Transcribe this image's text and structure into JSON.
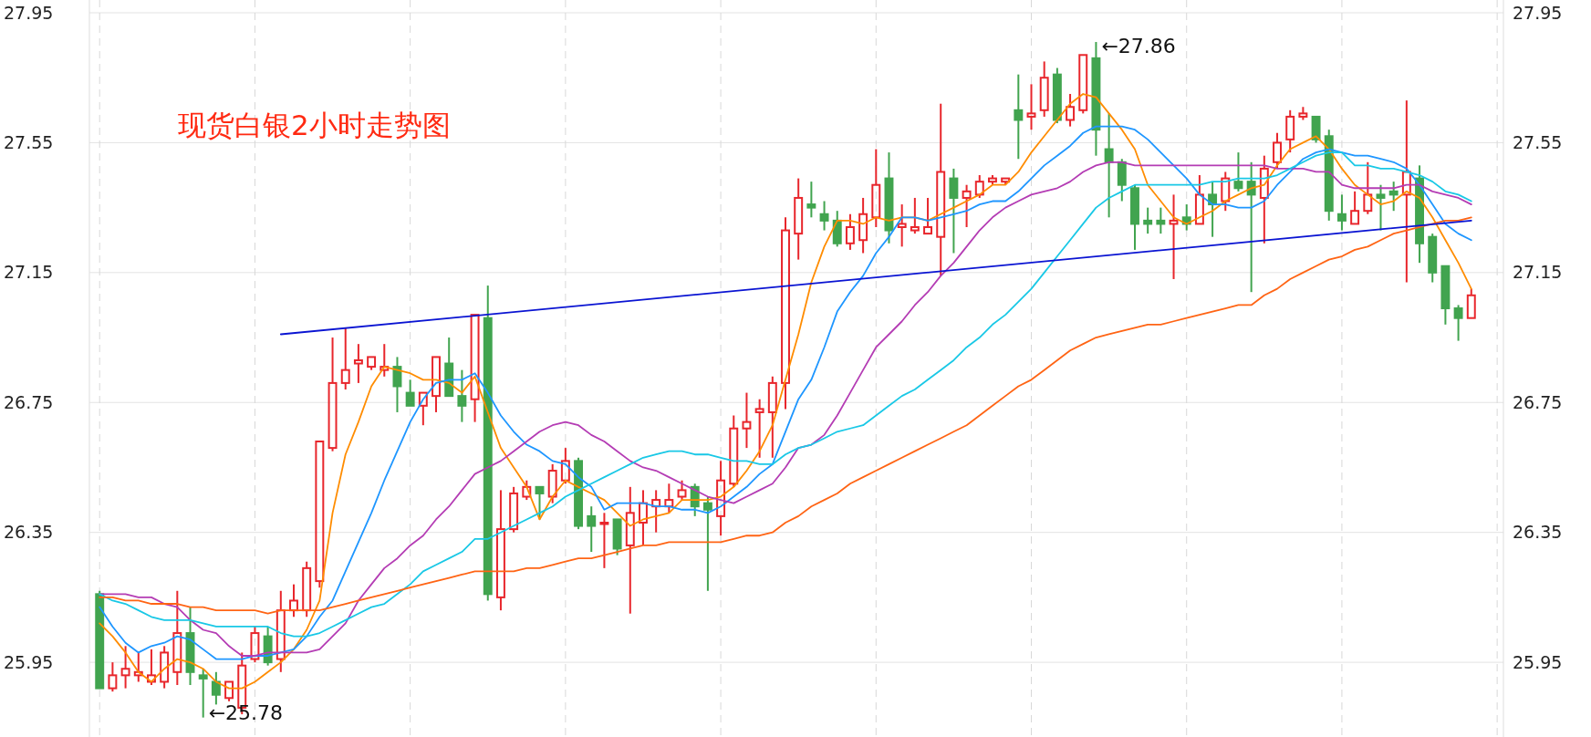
{
  "chart_data": {
    "type": "candlestick",
    "title": "现货白银2小时走势图",
    "categories": [
      null,
      null,
      null,
      null,
      null,
      null,
      null,
      null,
      null,
      null,
      null,
      null,
      null,
      null,
      null,
      null,
      null,
      null,
      null,
      null,
      null,
      null,
      null,
      null,
      null,
      null,
      null,
      null,
      null,
      null,
      null,
      null,
      null,
      null,
      null,
      null,
      null,
      null,
      null,
      null,
      null,
      null,
      null,
      null,
      null,
      null,
      null,
      null,
      null,
      null,
      null,
      null,
      null,
      null,
      null,
      null,
      null,
      null,
      null,
      null,
      null,
      null,
      null,
      null,
      null,
      null,
      null,
      null,
      null,
      null,
      null,
      null,
      null,
      null,
      null,
      null,
      null,
      null,
      null,
      null,
      null,
      null,
      null,
      null,
      null,
      null,
      null,
      null,
      null,
      null,
      null,
      null,
      null,
      null,
      null,
      null,
      null,
      null,
      null,
      null,
      null,
      null,
      null,
      null,
      null,
      null,
      null
    ],
    "ohlc": [
      [
        26.16,
        26.17,
        25.87,
        25.87
      ],
      [
        25.87,
        25.95,
        25.86,
        25.91
      ],
      [
        25.91,
        26.0,
        25.87,
        25.93
      ],
      [
        25.91,
        25.98,
        25.89,
        25.92
      ],
      [
        25.89,
        25.99,
        25.88,
        25.91
      ],
      [
        25.89,
        26.0,
        25.87,
        25.98
      ],
      [
        25.92,
        26.17,
        25.88,
        26.04
      ],
      [
        26.04,
        26.12,
        25.88,
        25.92
      ],
      [
        25.91,
        25.93,
        25.78,
        25.9
      ],
      [
        25.89,
        25.92,
        25.82,
        25.85
      ],
      [
        25.84,
        25.89,
        25.83,
        25.89
      ],
      [
        25.81,
        25.98,
        25.79,
        25.94
      ],
      [
        25.96,
        26.06,
        25.95,
        26.04
      ],
      [
        26.03,
        26.06,
        25.94,
        25.95
      ],
      [
        25.96,
        26.17,
        25.92,
        26.11
      ],
      [
        26.11,
        26.19,
        26.09,
        26.14
      ],
      [
        26.11,
        26.26,
        26.09,
        26.24
      ],
      [
        26.2,
        26.63,
        26.18,
        26.63
      ],
      [
        26.61,
        26.95,
        26.6,
        26.81
      ],
      [
        26.81,
        26.98,
        26.79,
        26.85
      ],
      [
        26.87,
        26.93,
        26.81,
        26.88
      ],
      [
        26.86,
        26.89,
        26.85,
        26.89
      ],
      [
        26.85,
        26.93,
        26.83,
        26.86
      ],
      [
        26.86,
        26.89,
        26.72,
        26.8
      ],
      [
        26.78,
        26.82,
        26.74,
        26.74
      ],
      [
        26.74,
        26.78,
        26.68,
        26.78
      ],
      [
        26.77,
        26.89,
        26.72,
        26.89
      ],
      [
        26.87,
        26.95,
        26.77,
        26.77
      ],
      [
        26.77,
        26.85,
        26.69,
        26.74
      ],
      [
        26.76,
        27.02,
        26.69,
        27.02
      ],
      [
        27.01,
        27.11,
        26.14,
        26.16
      ],
      [
        26.15,
        26.48,
        26.11,
        26.36
      ],
      [
        26.36,
        26.49,
        26.35,
        26.47
      ],
      [
        26.46,
        26.51,
        26.45,
        26.49
      ],
      [
        26.49,
        26.49,
        26.39,
        26.47
      ],
      [
        26.46,
        26.56,
        26.44,
        26.54
      ],
      [
        26.51,
        26.61,
        26.5,
        26.57
      ],
      [
        26.57,
        26.58,
        26.36,
        26.37
      ],
      [
        26.4,
        26.43,
        26.29,
        26.37
      ],
      [
        26.38,
        26.41,
        26.24,
        26.38
      ],
      [
        26.39,
        26.39,
        26.28,
        26.3
      ],
      [
        26.31,
        26.49,
        26.1,
        26.41
      ],
      [
        26.38,
        26.48,
        26.31,
        26.44
      ],
      [
        26.43,
        26.48,
        26.35,
        26.45
      ],
      [
        26.43,
        26.5,
        26.41,
        26.45
      ],
      [
        26.46,
        26.51,
        26.45,
        26.48
      ],
      [
        26.49,
        26.5,
        26.4,
        26.43
      ],
      [
        26.44,
        26.46,
        26.17,
        26.42
      ],
      [
        26.4,
        26.57,
        26.34,
        26.51
      ],
      [
        26.5,
        26.71,
        26.49,
        26.67
      ],
      [
        26.67,
        26.78,
        26.61,
        26.69
      ],
      [
        26.72,
        26.76,
        26.58,
        26.73
      ],
      [
        26.72,
        26.83,
        26.58,
        26.81
      ],
      [
        26.81,
        27.32,
        26.73,
        27.28
      ],
      [
        27.27,
        27.44,
        27.19,
        27.38
      ],
      [
        27.36,
        27.43,
        27.32,
        27.35
      ],
      [
        27.33,
        27.37,
        27.28,
        27.31
      ],
      [
        27.31,
        27.34,
        27.23,
        27.24
      ],
      [
        27.24,
        27.33,
        27.22,
        27.29
      ],
      [
        27.25,
        27.38,
        27.21,
        27.33
      ],
      [
        27.32,
        27.53,
        27.29,
        27.42
      ],
      [
        27.44,
        27.52,
        27.24,
        27.28
      ],
      [
        27.29,
        27.36,
        27.23,
        27.3
      ],
      [
        27.28,
        27.38,
        27.27,
        27.29
      ],
      [
        27.27,
        27.38,
        27.27,
        27.29
      ],
      [
        27.26,
        27.67,
        27.14,
        27.46
      ],
      [
        27.44,
        27.47,
        27.21,
        27.38
      ],
      [
        27.38,
        27.42,
        27.29,
        27.4
      ],
      [
        27.39,
        27.45,
        27.38,
        27.43
      ],
      [
        27.43,
        27.45,
        27.42,
        27.44
      ],
      [
        27.43,
        27.44,
        27.42,
        27.44
      ],
      [
        27.65,
        27.76,
        27.5,
        27.62
      ],
      [
        27.63,
        27.73,
        27.59,
        27.64
      ],
      [
        27.65,
        27.8,
        27.63,
        27.75
      ],
      [
        27.76,
        27.78,
        27.61,
        27.62
      ],
      [
        27.62,
        27.7,
        27.6,
        27.66
      ],
      [
        27.65,
        27.82,
        27.64,
        27.82
      ],
      [
        27.81,
        27.86,
        27.51,
        27.59
      ],
      [
        27.53,
        27.64,
        27.32,
        27.49
      ],
      [
        27.49,
        27.5,
        27.37,
        27.42
      ],
      [
        27.41,
        27.42,
        27.22,
        27.3
      ],
      [
        27.31,
        27.35,
        27.27,
        27.3
      ],
      [
        27.31,
        27.35,
        27.27,
        27.3
      ],
      [
        27.3,
        27.39,
        27.13,
        27.31
      ],
      [
        27.32,
        27.36,
        27.28,
        27.3
      ],
      [
        27.3,
        27.45,
        27.3,
        27.39
      ],
      [
        27.39,
        27.43,
        27.26,
        27.36
      ],
      [
        27.37,
        27.46,
        27.34,
        27.44
      ],
      [
        27.43,
        27.52,
        27.4,
        27.41
      ],
      [
        27.43,
        27.49,
        27.09,
        27.39
      ],
      [
        27.38,
        27.51,
        27.24,
        27.47
      ],
      [
        27.49,
        27.58,
        27.47,
        27.55
      ],
      [
        27.56,
        27.65,
        27.52,
        27.63
      ],
      [
        27.63,
        27.66,
        27.62,
        27.64
      ],
      [
        27.63,
        27.63,
        27.55,
        27.56
      ],
      [
        27.57,
        27.59,
        27.31,
        27.34
      ],
      [
        27.33,
        27.39,
        27.28,
        27.31
      ],
      [
        27.3,
        27.4,
        27.3,
        27.34
      ],
      [
        27.34,
        27.49,
        27.33,
        27.39
      ],
      [
        27.39,
        27.42,
        27.28,
        27.38
      ],
      [
        27.4,
        27.43,
        27.34,
        27.39
      ],
      [
        27.39,
        27.68,
        27.12,
        27.46
      ],
      [
        27.44,
        27.48,
        27.18,
        27.24
      ],
      [
        27.26,
        27.27,
        27.12,
        27.15
      ],
      [
        27.17,
        27.17,
        26.99,
        27.04
      ],
      [
        27.04,
        27.05,
        26.94,
        27.01
      ],
      [
        27.01,
        27.1,
        27.01,
        27.08
      ]
    ],
    "series": [
      {
        "type": "line",
        "color": "#ff8c00",
        "values": [
          26.07,
          26.03,
          25.98,
          25.92,
          25.89,
          25.93,
          25.96,
          25.95,
          25.93,
          25.89,
          25.87,
          25.87,
          25.89,
          25.92,
          25.95,
          25.99,
          26.05,
          26.14,
          26.41,
          26.59,
          26.69,
          26.8,
          26.86,
          26.85,
          26.84,
          26.82,
          26.82,
          26.81,
          26.78,
          26.83,
          26.72,
          26.61,
          26.55,
          26.49,
          26.39,
          26.46,
          26.51,
          26.49,
          26.47,
          26.45,
          26.41,
          26.37,
          26.39,
          26.4,
          26.41,
          26.45,
          26.45,
          26.45,
          26.46,
          26.49,
          26.54,
          26.6,
          26.68,
          26.82,
          26.96,
          27.12,
          27.23,
          27.31,
          27.31,
          27.3,
          27.32,
          27.31,
          27.32,
          27.32,
          27.31,
          27.33,
          27.35,
          27.37,
          27.39,
          27.42,
          27.42,
          27.46,
          27.52,
          27.57,
          27.62,
          27.67,
          27.7,
          27.69,
          27.64,
          27.59,
          27.53,
          27.42,
          27.37,
          27.32,
          27.3,
          27.32,
          27.34,
          27.37,
          27.39,
          27.41,
          27.42,
          27.48,
          27.53,
          27.55,
          27.57,
          27.53,
          27.47,
          27.42,
          27.39,
          27.36,
          27.37,
          27.4,
          27.38,
          27.32,
          27.25,
          27.18,
          27.1
        ]
      },
      {
        "type": "line",
        "color": "#1e96ff",
        "values": [
          26.12,
          26.06,
          26.01,
          25.98,
          26.0,
          26.01,
          26.03,
          26.02,
          25.99,
          25.96,
          25.96,
          25.96,
          25.97,
          25.97,
          25.98,
          25.99,
          26.03,
          26.09,
          26.14,
          26.23,
          26.32,
          26.41,
          26.51,
          26.6,
          26.69,
          26.76,
          26.81,
          26.82,
          26.82,
          26.84,
          26.78,
          26.71,
          26.66,
          26.62,
          26.6,
          26.57,
          26.56,
          26.52,
          26.49,
          26.42,
          26.44,
          26.44,
          26.44,
          26.43,
          26.43,
          26.42,
          26.42,
          26.41,
          26.43,
          26.46,
          26.49,
          26.53,
          26.56,
          26.66,
          26.76,
          26.82,
          26.92,
          27.03,
          27.09,
          27.14,
          27.21,
          27.26,
          27.32,
          27.32,
          27.31,
          27.32,
          27.33,
          27.34,
          27.36,
          27.37,
          27.37,
          27.4,
          27.44,
          27.48,
          27.51,
          27.54,
          27.58,
          27.6,
          27.6,
          27.6,
          27.59,
          27.56,
          27.52,
          27.48,
          27.44,
          27.39,
          27.36,
          27.36,
          27.35,
          27.35,
          27.37,
          27.42,
          27.46,
          27.5,
          27.52,
          27.53,
          27.52,
          27.51,
          27.51,
          27.5,
          27.49,
          27.47,
          27.42,
          27.36,
          27.3,
          27.27,
          27.25
        ]
      },
      {
        "type": "line",
        "color": "#b43cb4",
        "values": [
          26.16,
          26.16,
          26.16,
          26.15,
          26.15,
          26.13,
          26.12,
          26.08,
          26.05,
          26.04,
          26.0,
          25.97,
          25.97,
          25.98,
          25.98,
          25.98,
          25.98,
          25.99,
          26.03,
          26.07,
          26.14,
          26.19,
          26.24,
          26.27,
          26.31,
          26.34,
          26.39,
          26.43,
          26.48,
          26.53,
          26.55,
          26.57,
          26.6,
          26.63,
          26.66,
          26.68,
          26.69,
          26.68,
          26.65,
          26.63,
          26.6,
          26.57,
          26.55,
          26.54,
          26.52,
          26.5,
          26.48,
          26.46,
          26.45,
          26.44,
          26.46,
          26.48,
          26.5,
          26.55,
          26.61,
          26.62,
          26.65,
          26.71,
          26.78,
          26.85,
          26.92,
          26.96,
          27.0,
          27.05,
          27.09,
          27.14,
          27.18,
          27.23,
          27.28,
          27.32,
          27.35,
          27.37,
          27.39,
          27.4,
          27.41,
          27.43,
          27.46,
          27.48,
          27.49,
          27.49,
          27.48,
          27.48,
          27.48,
          27.48,
          27.48,
          27.48,
          27.48,
          27.48,
          27.48,
          27.48,
          27.48,
          27.47,
          27.47,
          27.47,
          27.46,
          27.46,
          27.42,
          27.41,
          27.41,
          27.41,
          27.41,
          27.42,
          27.42,
          27.4,
          27.39,
          27.38,
          27.36
        ]
      },
      {
        "type": "line",
        "color": "#19c8e6",
        "values": [
          26.16,
          26.14,
          26.13,
          26.11,
          26.09,
          26.08,
          26.08,
          26.08,
          26.07,
          26.06,
          26.06,
          26.06,
          26.06,
          26.06,
          26.04,
          26.03,
          26.03,
          26.04,
          26.06,
          26.08,
          26.1,
          26.12,
          26.13,
          26.16,
          26.19,
          26.23,
          26.25,
          26.27,
          26.29,
          26.33,
          26.33,
          26.35,
          26.37,
          26.39,
          26.41,
          26.43,
          26.46,
          26.48,
          26.5,
          26.52,
          26.54,
          26.56,
          26.58,
          26.59,
          26.6,
          26.6,
          26.59,
          26.59,
          26.58,
          26.57,
          26.57,
          26.56,
          26.56,
          26.59,
          26.61,
          26.62,
          26.64,
          26.66,
          26.67,
          26.68,
          26.71,
          26.74,
          26.77,
          26.79,
          26.82,
          26.85,
          26.88,
          26.92,
          26.95,
          26.99,
          27.02,
          27.06,
          27.1,
          27.15,
          27.2,
          27.25,
          27.3,
          27.35,
          27.38,
          27.4,
          27.42,
          27.42,
          27.42,
          27.42,
          27.42,
          27.42,
          27.43,
          27.43,
          27.44,
          27.44,
          27.44,
          27.45,
          27.47,
          27.49,
          27.51,
          27.52,
          27.52,
          27.48,
          27.48,
          27.47,
          27.47,
          27.46,
          27.45,
          27.43,
          27.4,
          27.39,
          27.37
        ]
      },
      {
        "type": "line",
        "color": "#ff6414",
        "values": [
          26.15,
          26.15,
          26.14,
          26.14,
          26.13,
          26.13,
          26.13,
          26.12,
          26.12,
          26.11,
          26.11,
          26.11,
          26.11,
          26.1,
          26.11,
          26.11,
          26.11,
          26.11,
          26.12,
          26.13,
          26.14,
          26.15,
          26.16,
          26.17,
          26.18,
          26.19,
          26.2,
          26.21,
          26.22,
          26.23,
          26.23,
          26.23,
          26.23,
          26.24,
          26.24,
          26.25,
          26.26,
          26.27,
          26.27,
          26.28,
          26.29,
          26.3,
          26.31,
          26.31,
          26.32,
          26.32,
          26.32,
          26.32,
          26.32,
          26.33,
          26.34,
          26.34,
          26.35,
          26.38,
          26.4,
          26.43,
          26.45,
          26.47,
          26.5,
          26.52,
          26.54,
          26.56,
          26.58,
          26.6,
          26.62,
          26.64,
          26.66,
          26.68,
          26.71,
          26.74,
          26.77,
          26.8,
          26.82,
          26.85,
          26.88,
          26.91,
          26.93,
          26.95,
          26.96,
          26.97,
          26.98,
          26.99,
          26.99,
          27.0,
          27.01,
          27.02,
          27.03,
          27.04,
          27.05,
          27.05,
          27.08,
          27.1,
          27.13,
          27.15,
          27.17,
          27.19,
          27.2,
          27.22,
          27.23,
          27.25,
          27.27,
          27.28,
          27.29,
          27.3,
          27.31,
          27.31,
          27.32
        ]
      },
      {
        "type": "line",
        "color": "#0a14d2",
        "values": [
          null,
          null,
          null,
          null,
          null,
          null,
          null,
          null,
          null,
          null,
          null,
          null,
          null,
          null,
          26.96,
          null,
          null,
          null,
          null,
          null,
          null,
          null,
          null,
          null,
          null,
          null,
          null,
          null,
          null,
          null,
          null,
          null,
          null,
          null,
          null,
          null,
          null,
          null,
          null,
          null,
          null,
          null,
          null,
          null,
          null,
          null,
          null,
          null,
          null,
          null,
          null,
          null,
          null,
          null,
          null,
          null,
          null,
          null,
          null,
          null,
          null,
          null,
          null,
          null,
          null,
          null,
          null,
          null,
          null,
          null,
          null,
          null,
          null,
          null,
          null,
          null,
          null,
          null,
          null,
          null,
          null,
          null,
          null,
          null,
          null,
          null,
          null,
          null,
          null,
          null,
          null,
          null,
          null,
          null,
          null,
          null,
          null,
          null,
          null,
          null,
          null,
          null,
          null,
          null,
          null,
          null,
          27.31
        ]
      }
    ],
    "ylim": [
      25.72,
      27.95
    ],
    "yticks": [
      25.95,
      26.35,
      26.75,
      27.15,
      27.55,
      27.95
    ],
    "y2lim": [
      25.72,
      27.95
    ],
    "y2ticks": [
      25.95,
      26.35,
      26.75,
      27.15,
      27.55,
      27.95
    ],
    "grid": true,
    "annotations": [
      "←27.86",
      "←25.78"
    ]
  }
}
